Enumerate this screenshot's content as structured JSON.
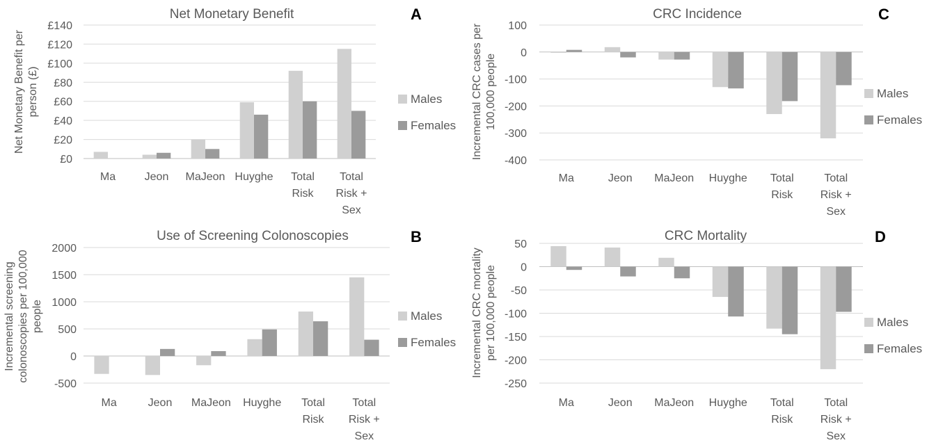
{
  "colors": {
    "males": "#d0d0d0",
    "females": "#9b9b9b",
    "grid": "#d9d9d9",
    "text": "#595959"
  },
  "chart_data": [
    {
      "id": "A",
      "type": "bar",
      "title": "Net Monetary Benefit",
      "panel_letter": "A",
      "ylabel": [
        "Net Monetary Benefit per",
        "person (£)"
      ],
      "ylim": [
        0,
        140
      ],
      "yticks": [
        0,
        20,
        40,
        60,
        80,
        100,
        120,
        140
      ],
      "ytick_labels": [
        "£0",
        "£20",
        "£40",
        "£60",
        "£80",
        "£100",
        "£120",
        "£140"
      ],
      "categories": [
        [
          "Ma"
        ],
        [
          "Jeon"
        ],
        [
          "MaJeon"
        ],
        [
          "Huyghe"
        ],
        [
          "Total",
          "Risk"
        ],
        [
          "Total",
          "Risk +",
          "Sex"
        ]
      ],
      "series": [
        {
          "name": "Males",
          "values": [
            7,
            4,
            20,
            59,
            92,
            115
          ]
        },
        {
          "name": "Females",
          "values": [
            0,
            6,
            10,
            46,
            60,
            50
          ]
        }
      ],
      "legend_position": "right",
      "grid": true
    },
    {
      "id": "B",
      "type": "bar",
      "title": "Use of Screening Colonoscopies",
      "panel_letter": "B",
      "ylabel": [
        "Incremental screening",
        "colonoscopies per 100,000",
        "people"
      ],
      "ylim": [
        -500,
        2000
      ],
      "yticks": [
        -500,
        0,
        500,
        1000,
        1500,
        2000
      ],
      "ytick_labels": [
        "-500",
        "0",
        "500",
        "1000",
        "1500",
        "2000"
      ],
      "categories": [
        [
          "Ma"
        ],
        [
          "Jeon"
        ],
        [
          "MaJeon"
        ],
        [
          "Huyghe"
        ],
        [
          "Total",
          "Risk"
        ],
        [
          "Total",
          "Risk +",
          "Sex"
        ]
      ],
      "series": [
        {
          "name": "Males",
          "values": [
            -330,
            -350,
            -170,
            310,
            820,
            1450
          ]
        },
        {
          "name": "Females",
          "values": [
            0,
            130,
            90,
            490,
            640,
            300
          ]
        }
      ],
      "legend_position": "right",
      "grid": true
    },
    {
      "id": "C",
      "type": "bar",
      "title": "CRC Incidence",
      "panel_letter": "C",
      "ylabel": [
        "Incremental CRC cases per",
        "100,000 people"
      ],
      "ylim": [
        -400,
        100
      ],
      "yticks": [
        -400,
        -300,
        -200,
        -100,
        0,
        100
      ],
      "ytick_labels": [
        "-400",
        "-300",
        "-200",
        "-100",
        "0",
        "100"
      ],
      "categories": [
        [
          "Ma"
        ],
        [
          "Jeon"
        ],
        [
          "MaJeon"
        ],
        [
          "Huyghe"
        ],
        [
          "Total",
          "Risk"
        ],
        [
          "Total",
          "Risk +",
          "Sex"
        ]
      ],
      "series": [
        {
          "name": "Males",
          "values": [
            -3,
            18,
            -28,
            -130,
            -230,
            -320
          ]
        },
        {
          "name": "Females",
          "values": [
            8,
            -20,
            -28,
            -135,
            -182,
            -123
          ]
        }
      ],
      "legend_position": "right",
      "grid": true
    },
    {
      "id": "D",
      "type": "bar",
      "title": "CRC Mortality",
      "panel_letter": "D",
      "ylabel": [
        "Incremental CRC mortality",
        "per 100,000 people"
      ],
      "ylim": [
        -250,
        50
      ],
      "yticks": [
        -250,
        -200,
        -150,
        -100,
        -50,
        0,
        50
      ],
      "ytick_labels": [
        "-250",
        "-200",
        "-150",
        "-100",
        "-50",
        "0",
        "50"
      ],
      "categories": [
        [
          "Ma"
        ],
        [
          "Jeon"
        ],
        [
          "MaJeon"
        ],
        [
          "Huyghe"
        ],
        [
          "Total",
          "Risk"
        ],
        [
          "Total",
          "Risk +",
          "Sex"
        ]
      ],
      "series": [
        {
          "name": "Males",
          "values": [
            44,
            41,
            19,
            -65,
            -133,
            -220
          ]
        },
        {
          "name": "Females",
          "values": [
            -7,
            -21,
            -25,
            -107,
            -145,
            -97
          ]
        }
      ],
      "legend_position": "right",
      "grid": true
    }
  ]
}
